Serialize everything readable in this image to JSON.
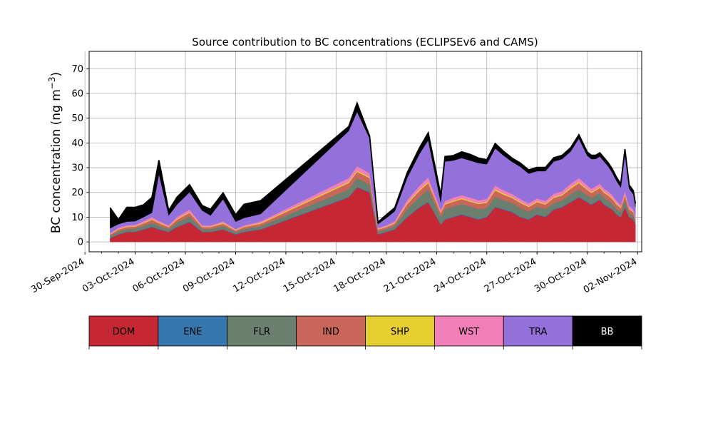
{
  "chart_data": {
    "type": "area",
    "stacked": true,
    "title": "Source contribution to BC concentrations (ECLIPSEv6 and CAMS)",
    "ylabel": "BC concentration (ng m",
    "ylabel_sup": "−3",
    "ylabel_close": ")",
    "xlabel": "",
    "ylim": [
      -4,
      77
    ],
    "xlim": [
      "2024-09-30T06:00",
      "2024-11-02T06:00"
    ],
    "grid": true,
    "y_ticks": [
      0,
      10,
      20,
      30,
      40,
      50,
      60,
      70
    ],
    "x_ticks": [
      "30-Sep-2024",
      "03-Oct-2024",
      "06-Oct-2024",
      "09-Oct-2024",
      "12-Oct-2024",
      "15-Oct-2024",
      "18-Oct-2024",
      "21-Oct-2024",
      "24-Oct-2024",
      "27-Oct-2024",
      "30-Oct-2024",
      "02-Nov-2024"
    ],
    "x_dates": [
      "2024-10-01",
      "2024-10-02",
      "2024-10-03",
      "2024-10-04",
      "2024-10-05",
      "2024-10-06",
      "2024-10-07",
      "2024-10-08",
      "2024-10-09",
      "2024-10-10",
      "2024-10-11",
      "2024-10-12",
      "2024-10-13",
      "2024-10-14",
      "2024-10-15",
      "2024-10-16",
      "2024-10-17",
      "2024-10-18",
      "2024-10-19",
      "2024-10-20",
      "2024-10-21",
      "2024-10-22",
      "2024-10-23",
      "2024-10-24",
      "2024-10-25",
      "2024-10-26",
      "2024-10-27",
      "2024-10-28",
      "2024-10-29",
      "2024-10-30",
      "2024-10-31",
      "2024-11-01"
    ],
    "legend_position": "below",
    "series": [
      {
        "name": "DOM",
        "color": "#c52834",
        "values": [
          1.5,
          3,
          4,
          4,
          5,
          6,
          5,
          4,
          6,
          8,
          4,
          4,
          5,
          3,
          4,
          5,
          18,
          22,
          20,
          3,
          4,
          5,
          10,
          14,
          16,
          7,
          9,
          10,
          11,
          10,
          9,
          10,
          14,
          13,
          12,
          10,
          9,
          11,
          10,
          13,
          14,
          16,
          18,
          16,
          15,
          16,
          17,
          15,
          14,
          13,
          11,
          10,
          14,
          10,
          9,
          7
        ]
      },
      {
        "name": "ENE",
        "color": "#3777b0",
        "values": [
          0.2,
          0.2,
          0.2,
          0.2,
          0.2,
          0.3,
          0.3,
          0.2,
          0.3,
          0.3,
          0.2,
          0.2,
          0.2,
          0.2,
          0.2,
          0.2,
          0.3,
          0.3,
          0.3,
          0.2,
          0.2,
          0.2,
          0.3,
          0.3,
          0.3,
          0.2,
          0.3,
          0.3,
          0.3,
          0.3,
          0.3,
          0.3,
          0.3,
          0.3,
          0.3,
          0.3,
          0.3,
          0.3,
          0.3,
          0.3,
          0.3,
          0.3,
          0.3,
          0.3,
          0.3,
          0.3,
          0.3,
          0.3,
          0.3,
          0.3,
          0.3,
          0.2,
          0.3,
          0.2,
          0.2,
          0.2
        ]
      },
      {
        "name": "FLR",
        "color": "#6b7f6f",
        "values": [
          0.8,
          1,
          1,
          1.2,
          1.3,
          1.5,
          1.3,
          1,
          1.5,
          2,
          1,
          1,
          1.2,
          0.8,
          1,
          1.2,
          3,
          3.5,
          3,
          1,
          1,
          1.3,
          3,
          4,
          5,
          3,
          4,
          4,
          4,
          4,
          4,
          3.5,
          4,
          3.5,
          3.5,
          3.5,
          3,
          3,
          3,
          2.5,
          2.5,
          3,
          3,
          2.5,
          2.5,
          2.5,
          2.5,
          2.5,
          2.5,
          2,
          2,
          2,
          2.5,
          1.5,
          1.5,
          1
        ]
      },
      {
        "name": "IND",
        "color": "#c9665a",
        "values": [
          0.5,
          0.8,
          0.8,
          0.8,
          1,
          1.2,
          1,
          0.8,
          1.2,
          1.5,
          0.8,
          0.8,
          1,
          0.6,
          0.8,
          1,
          2.5,
          2.5,
          2.5,
          0.8,
          0.8,
          1,
          2,
          2.5,
          2.5,
          1.5,
          1.8,
          2,
          2,
          2,
          2,
          2,
          2.5,
          2.3,
          2,
          2,
          1.8,
          1.8,
          1.8,
          2,
          2,
          2.2,
          2.5,
          2.2,
          2,
          2,
          2,
          2,
          2,
          2,
          1.8,
          1.5,
          2,
          1.5,
          1.3,
          1
        ]
      },
      {
        "name": "SHP",
        "color": "#e5d030",
        "values": [
          0.2,
          0.2,
          0.2,
          0.2,
          0.3,
          0.3,
          0.3,
          0.2,
          0.3,
          0.3,
          0.2,
          0.2,
          0.3,
          0.2,
          0.2,
          0.3,
          0.5,
          0.5,
          0.5,
          0.2,
          0.2,
          0.3,
          0.5,
          0.5,
          0.5,
          0.3,
          0.4,
          0.4,
          0.4,
          0.4,
          0.4,
          0.4,
          0.5,
          0.5,
          0.4,
          0.4,
          0.4,
          0.4,
          0.4,
          0.4,
          0.4,
          0.5,
          0.5,
          0.4,
          0.4,
          0.4,
          0.4,
          0.4,
          0.4,
          0.4,
          0.4,
          0.3,
          0.4,
          0.3,
          0.3,
          0.2
        ]
      },
      {
        "name": "WST",
        "color": "#f17fb9",
        "values": [
          0.3,
          0.5,
          0.5,
          0.5,
          0.6,
          0.8,
          0.6,
          0.5,
          0.8,
          1,
          0.5,
          0.5,
          0.6,
          0.4,
          0.5,
          0.6,
          1.5,
          1.8,
          1.5,
          0.5,
          0.5,
          0.6,
          1.2,
          1.5,
          1.8,
          1,
          1,
          1.2,
          1.2,
          1.2,
          1.2,
          1.2,
          1.5,
          1.3,
          1.2,
          1.2,
          1.1,
          1.1,
          1.1,
          1.3,
          1.3,
          1.5,
          1.5,
          1.4,
          1.3,
          1.3,
          1.3,
          1.3,
          1.3,
          1.2,
          1.1,
          1,
          1.3,
          1,
          0.9,
          0.7
        ]
      },
      {
        "name": "TRA",
        "color": "#9470da",
        "values": [
          2,
          1.5,
          1.5,
          1.5,
          1.6,
          1.7,
          19,
          4,
          5,
          7,
          6,
          4,
          9,
          3,
          3,
          3,
          19,
          22,
          14,
          1.5,
          3,
          4,
          9,
          13,
          15,
          3,
          16,
          15,
          15,
          15,
          15,
          14,
          15,
          14,
          13,
          13,
          12,
          11,
          12,
          13,
          13,
          13,
          16,
          12,
          12,
          11,
          11,
          11,
          10,
          9,
          8,
          7,
          15,
          7,
          6,
          4
        ]
      },
      {
        "name": "BB",
        "color": "#000000",
        "values": [
          8.3,
          1.8,
          5.8,
          5.6,
          5,
          6.2,
          5.5,
          2,
          3,
          3,
          2,
          2.5,
          2.5,
          2.8,
          5.5,
          5.4,
          1.8,
          3.5,
          1,
          0.8,
          1.3,
          1.4,
          2,
          2.5,
          3,
          3,
          2,
          2,
          2.5,
          2.5,
          2,
          1.8,
          2,
          1.7,
          1.5,
          1.5,
          1.5,
          1.5,
          1.5,
          1.5,
          1.5,
          1.5,
          1.5,
          1.5,
          1.5,
          1.5,
          1.5,
          1.5,
          1.5,
          1.5,
          1.5,
          1.5,
          2,
          1.5,
          1.5,
          1.5
        ]
      }
    ],
    "x_points": [
      "2024-10-01T12:00",
      "2024-10-02T00:00",
      "2024-10-02T12:00",
      "2024-10-03T00:00",
      "2024-10-03T12:00",
      "2024-10-04T00:00",
      "2024-10-04T10:00",
      "2024-10-05T00:00",
      "2024-10-05T12:00",
      "2024-10-06T06:00",
      "2024-10-07T00:00",
      "2024-10-07T12:00",
      "2024-10-08T06:00",
      "2024-10-09T00:00",
      "2024-10-09T12:00",
      "2024-10-10T12:00",
      "2024-10-15T18:00",
      "2024-10-16T06:00",
      "2024-10-17T00:00",
      "2024-10-17T12:00",
      "2024-10-18T00:00",
      "2024-10-18T12:00",
      "2024-10-19T06:00",
      "2024-10-20T00:00",
      "2024-10-20T12:00",
      "2024-10-21T06:00",
      "2024-10-21T12:00",
      "2024-10-22T00:00",
      "2024-10-22T12:00",
      "2024-10-23T00:00",
      "2024-10-23T12:00",
      "2024-10-24T00:00",
      "2024-10-24T12:00",
      "2024-10-25T00:00",
      "2024-10-25T12:00",
      "2024-10-26T00:00",
      "2024-10-26T12:00",
      "2024-10-27T00:00",
      "2024-10-27T12:00",
      "2024-10-28T00:00",
      "2024-10-28T12:00",
      "2024-10-29T00:00",
      "2024-10-29T12:00",
      "2024-10-30T00:00",
      "2024-10-30T06:00",
      "2024-10-30T12:00",
      "2024-10-30T18:00",
      "2024-10-31T00:00",
      "2024-10-31T06:00",
      "2024-10-31T12:00",
      "2024-10-31T18:00",
      "2024-11-01T00:00",
      "2024-11-01T06:00",
      "2024-11-01T12:00",
      "2024-11-01T18:00",
      "2024-11-01T21:00"
    ]
  },
  "legend": {
    "items": [
      {
        "label": "DOM",
        "color": "#c52834",
        "text_color": "#000000"
      },
      {
        "label": "ENE",
        "color": "#3777b0",
        "text_color": "#000000"
      },
      {
        "label": "FLR",
        "color": "#6b7f6f",
        "text_color": "#000000"
      },
      {
        "label": "IND",
        "color": "#c9665a",
        "text_color": "#000000"
      },
      {
        "label": "SHP",
        "color": "#e5d030",
        "text_color": "#000000"
      },
      {
        "label": "WST",
        "color": "#f17fb9",
        "text_color": "#000000"
      },
      {
        "label": "TRA",
        "color": "#9470da",
        "text_color": "#000000"
      },
      {
        "label": "BB",
        "color": "#000000",
        "text_color": "#ffffff"
      }
    ]
  }
}
